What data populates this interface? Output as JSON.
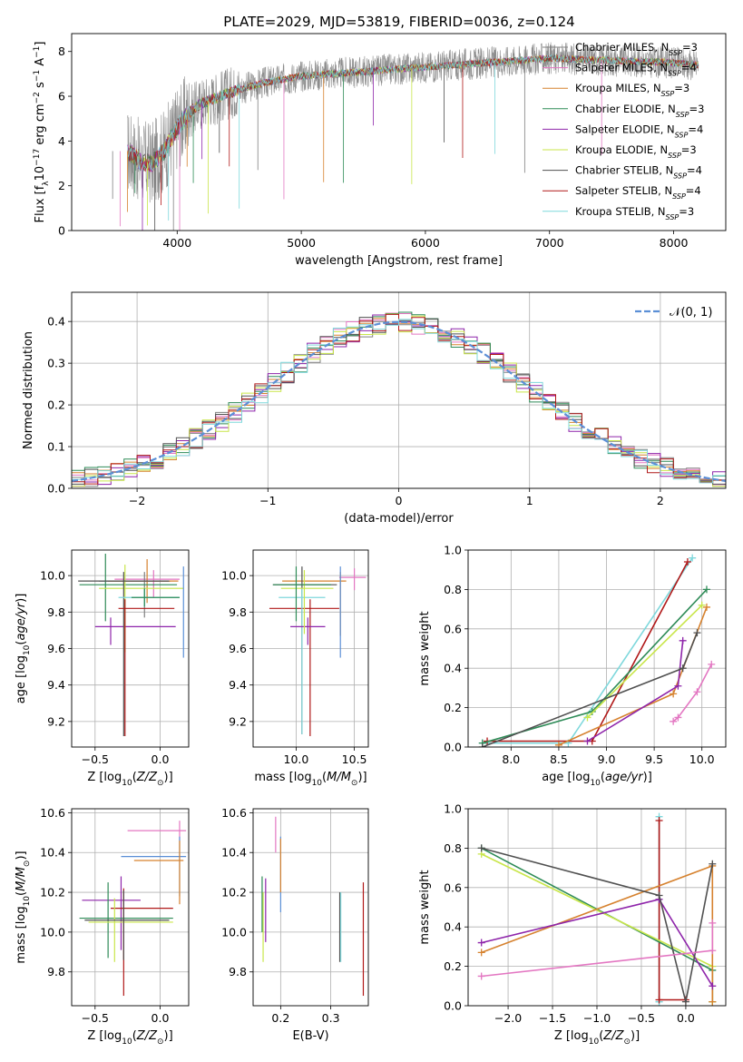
{
  "figure_title": "PLATE=2029, MJD=53819, FIBERID=0036, z=0.124",
  "colors": {
    "chabrier_miles": "#808080",
    "salpeter_miles": "#e377c2",
    "kroupa_miles": "#d6822f",
    "chabrier_elodie": "#2e8b57",
    "salpeter_elodie": "#8e24aa",
    "kroupa_elodie": "#c9e64a",
    "chabrier_stelib": "#505050",
    "salpeter_stelib": "#b01818",
    "kroupa_stelib": "#7fd8dc",
    "normal_curve": "#5b8fd6",
    "grid": "#b0b0b0"
  },
  "chart_data": [
    {
      "id": "spectrum",
      "type": "line",
      "xlabel": "wavelength [Angstrom, rest frame]",
      "ylabel": "Flux [fλ10⁻¹⁷ erg cm⁻² s⁻¹ A⁻¹]",
      "xlim": [
        3150,
        8420
      ],
      "ylim": [
        0,
        8.8
      ],
      "xticks": [
        4000,
        5000,
        6000,
        7000,
        8000
      ],
      "yticks": [
        0,
        2,
        4,
        6,
        8
      ],
      "grid": false,
      "legend_position": "upper right",
      "legend": [
        "Chabrier MILES, N_SSP=3",
        "Salpeter MILES, N_SSP=4",
        "Kroupa MILES, N_SSP=3",
        "Chabrier ELODIE, N_SSP=3",
        "Salpeter ELODIE, N_SSP=4",
        "Kroupa ELODIE, N_SSP=3",
        "Chabrier STELIB, N_SSP=4",
        "Salpeter STELIB, N_SSP=4",
        "Kroupa STELIB, N_SSP=3"
      ],
      "continuum": {
        "x": [
          3600,
          3700,
          3800,
          3900,
          4000,
          4100,
          4200,
          4300,
          4500,
          4700,
          5000,
          5500,
          6000,
          6500,
          7000,
          7500,
          8000,
          8200
        ],
        "y": [
          3.55,
          3.1,
          3.0,
          3.6,
          4.6,
          5.3,
          5.7,
          5.9,
          6.3,
          6.6,
          6.9,
          7.1,
          7.3,
          7.5,
          7.7,
          7.6,
          7.5,
          7.4
        ]
      },
      "noise_spikes_x": [
        3480,
        3540,
        3600,
        3660,
        3720,
        3760,
        3820,
        3870,
        3930,
        3970,
        4020,
        4080,
        4130,
        4200,
        4250,
        4340,
        4420,
        4500,
        4650,
        4860,
        5180,
        5340,
        5580,
        5890,
        6150,
        6300,
        6560,
        6800,
        7420
      ]
    },
    {
      "id": "residuals",
      "type": "line",
      "xlabel": "(data-model)/error",
      "ylabel": "Normed distribution",
      "xlim": [
        -2.5,
        2.5
      ],
      "ylim": [
        0,
        0.47
      ],
      "xticks": [
        -2,
        -1,
        0,
        1,
        2
      ],
      "yticks": [
        0.0,
        0.1,
        0.2,
        0.3,
        0.4
      ],
      "grid": true,
      "legend_position": "upper right",
      "legend": [
        "𝒩(0, 1)"
      ],
      "bin_width": 0.1
    },
    {
      "id": "age-vs-z",
      "type": "scatter",
      "xlabel": "Z [log10(Z/Z⊙)]",
      "ylabel": "age  [log10(age/yr)]",
      "xlim": [
        -0.68,
        0.22
      ],
      "ylim": [
        9.06,
        10.14
      ],
      "xticks": [
        -0.5,
        0.0
      ],
      "yticks": [
        9.2,
        9.4,
        9.6,
        9.8,
        10.0
      ],
      "grid": true,
      "points": [
        {
          "x": -0.05,
          "xerr": [
            0.3,
            0.2
          ],
          "y": 9.98,
          "yerr": [
            0.1,
            0.05
          ],
          "color": "salpeter_miles"
        },
        {
          "x": -0.12,
          "xerr": [
            0.35,
            0.2
          ],
          "y": 9.97,
          "yerr": [
            0.2,
            0.05
          ],
          "color": "chabrier_miles"
        },
        {
          "x": -0.1,
          "xerr": [
            0.3,
            0.24
          ],
          "y": 9.97,
          "yerr": [
            0.12,
            0.12
          ],
          "color": "kroupa_miles"
        },
        {
          "x": -0.42,
          "xerr": [
            0.2,
            0.55
          ],
          "y": 9.95,
          "yerr": [
            0.2,
            0.17
          ],
          "color": "chabrier_elodie"
        },
        {
          "x": -0.38,
          "xerr": [
            0.12,
            0.5
          ],
          "y": 9.72,
          "yerr": [
            0.1,
            0.05
          ],
          "color": "salpeter_elodie"
        },
        {
          "x": -0.27,
          "xerr": [
            0.2,
            0.45
          ],
          "y": 9.93,
          "yerr": [
            0.35,
            0.13
          ],
          "color": "kroupa_elodie"
        },
        {
          "x": -0.28,
          "xerr": [
            0.35,
            0.35
          ],
          "y": 9.97,
          "yerr": [
            0.85,
            0.05
          ],
          "color": "chabrier_stelib"
        },
        {
          "x": -0.27,
          "xerr": [
            0.05,
            0.38
          ],
          "y": 9.82,
          "yerr": [
            0.7,
            0.05
          ],
          "color": "salpeter_stelib"
        },
        {
          "x": -0.12,
          "xerr": [
            0.2,
            0.27
          ],
          "y": 9.88,
          "yerr": [
            0.05,
            0.05
          ],
          "color": "kroupa_stelib"
        },
        {
          "x": -0.12,
          "xerr": [
            0.1,
            0.27
          ],
          "y": 9.88,
          "yerr": [
            0.05,
            0.05
          ],
          "color": "chabrier_elodie"
        },
        {
          "x": 0.18,
          "xerr": [
            0.0,
            0.0
          ],
          "y": 9.95,
          "yerr": [
            0.4,
            0.1
          ],
          "color": "normal_curve"
        }
      ]
    },
    {
      "id": "age-vs-mass",
      "type": "scatter",
      "xlabel": "mass [log10(M/M⊙)]",
      "ylabel": "",
      "xlim": [
        9.63,
        10.62
      ],
      "ylim": [
        9.06,
        10.14
      ],
      "xticks": [
        10.0,
        10.5
      ],
      "yticks": [
        9.2,
        9.4,
        9.6,
        9.8,
        10.0
      ],
      "grid": true,
      "points": [
        {
          "x": 10.5,
          "xerr": [
            0.13,
            0.1
          ],
          "y": 9.99,
          "yerr": [
            0.07,
            0.05
          ],
          "color": "salpeter_miles"
        },
        {
          "x": 10.38,
          "xerr": [
            0.5,
            0.05
          ],
          "y": 9.97,
          "yerr": [
            0.3,
            0.05
          ],
          "color": "kroupa_miles"
        },
        {
          "x": 10.12,
          "xerr": [
            0.35,
            0.25
          ],
          "y": 9.82,
          "yerr": [
            0.7,
            0.05
          ],
          "color": "salpeter_stelib"
        },
        {
          "x": 10.05,
          "xerr": [
            0.25,
            0.3
          ],
          "y": 9.95,
          "yerr": [
            0.82,
            0.1
          ],
          "color": "chabrier_stelib"
        },
        {
          "x": 10.05,
          "xerr": [
            0.2,
            0.2
          ],
          "y": 9.88,
          "yerr": [
            0.75,
            0.05
          ],
          "color": "kroupa_stelib"
        },
        {
          "x": 10.1,
          "xerr": [
            0.15,
            0.15
          ],
          "y": 9.72,
          "yerr": [
            0.1,
            0.05
          ],
          "color": "salpeter_elodie"
        },
        {
          "x": 10.07,
          "xerr": [
            0.2,
            0.25
          ],
          "y": 9.93,
          "yerr": [
            0.25,
            0.1
          ],
          "color": "kroupa_elodie"
        },
        {
          "x": 10.0,
          "xerr": [
            0.2,
            0.3
          ],
          "y": 9.95,
          "yerr": [
            0.2,
            0.1
          ],
          "color": "chabrier_elodie"
        },
        {
          "x": 10.38,
          "xerr": [
            0.0,
            0.0
          ],
          "y": 9.95,
          "yerr": [
            0.4,
            0.1
          ],
          "color": "normal_curve"
        }
      ]
    },
    {
      "id": "mass-weight-vs-age",
      "type": "line",
      "xlabel": "age  [log10(age/yr)]",
      "ylabel": "mass weight",
      "xlim": [
        7.55,
        10.25
      ],
      "ylim": [
        0,
        1
      ],
      "xticks": [
        8.0,
        8.5,
        9.0,
        9.5,
        10.0
      ],
      "yticks": [
        0.0,
        0.2,
        0.4,
        0.6,
        0.8,
        1.0
      ],
      "grid": true,
      "series": [
        {
          "color": "kroupa_stelib",
          "x": [
            7.7,
            8.6,
            9.9
          ],
          "y": [
            0.02,
            0.02,
            0.96
          ]
        },
        {
          "color": "salpeter_stelib",
          "x": [
            7.75,
            8.85,
            9.85
          ],
          "y": [
            0.03,
            0.03,
            0.94
          ]
        },
        {
          "color": "chabrier_elodie",
          "x": [
            7.7,
            8.85,
            10.05
          ],
          "y": [
            0.02,
            0.18,
            0.8
          ]
        },
        {
          "color": "kroupa_elodie",
          "x": [
            8.8,
            10.0
          ],
          "y": [
            0.15,
            0.72
          ]
        },
        {
          "color": "kroupa_miles",
          "x": [
            8.5,
            9.7,
            10.05
          ],
          "y": [
            0.01,
            0.27,
            0.71
          ]
        },
        {
          "color": "salpeter_elodie",
          "x": [
            8.8,
            9.75,
            9.8
          ],
          "y": [
            0.03,
            0.31,
            0.54
          ]
        },
        {
          "color": "chabrier_stelib",
          "x": [
            7.7,
            9.8,
            9.95
          ],
          "y": [
            0.0,
            0.4,
            0.58
          ]
        },
        {
          "color": "salpeter_miles",
          "x": [
            9.7,
            9.75,
            9.95,
            10.1
          ],
          "y": [
            0.13,
            0.15,
            0.28,
            0.42
          ]
        }
      ]
    },
    {
      "id": "mass-vs-z",
      "type": "scatter",
      "xlabel": "Z [log10(Z/Z⊙)]",
      "ylabel": "mass [log10(M/M⊙)]",
      "xlim": [
        -0.68,
        0.22
      ],
      "ylim": [
        9.63,
        10.62
      ],
      "xticks": [
        -0.5,
        0.0
      ],
      "yticks": [
        9.8,
        10.0,
        10.2,
        10.4,
        10.6
      ],
      "grid": true,
      "points": [
        {
          "x": 0.15,
          "xerr": [
            0.4,
            0.05
          ],
          "y": 10.51,
          "yerr": [
            0.05,
            0.05
          ],
          "color": "salpeter_miles"
        },
        {
          "x": 0.15,
          "xerr": [
            0.45,
            0.05
          ],
          "y": 10.38,
          "yerr": [
            0.2,
            0.1
          ],
          "color": "normal_curve"
        },
        {
          "x": 0.15,
          "xerr": [
            0.35,
            0.03
          ],
          "y": 10.36,
          "yerr": [
            0.22,
            0.1
          ],
          "color": "kroupa_miles"
        },
        {
          "x": -0.3,
          "xerr": [
            0.3,
            0.15
          ],
          "y": 10.16,
          "yerr": [
            0.25,
            0.12
          ],
          "color": "salpeter_elodie"
        },
        {
          "x": -0.28,
          "xerr": [
            0.1,
            0.38
          ],
          "y": 10.12,
          "yerr": [
            0.44,
            0.1
          ],
          "color": "salpeter_stelib"
        },
        {
          "x": -0.4,
          "xerr": [
            0.22,
            0.5
          ],
          "y": 10.07,
          "yerr": [
            0.2,
            0.18
          ],
          "color": "chabrier_elodie"
        },
        {
          "x": -0.35,
          "xerr": [
            0.2,
            0.45
          ],
          "y": 10.05,
          "yerr": [
            0.2,
            0.12
          ],
          "color": "kroupa_elodie"
        },
        {
          "x": -0.28,
          "xerr": [
            0.3,
            0.35
          ],
          "y": 10.06,
          "yerr": [
            0.2,
            0.15
          ],
          "color": "chabrier_stelib"
        }
      ]
    },
    {
      "id": "mass-vs-ebv",
      "type": "scatter",
      "xlabel": "E(B-V)",
      "ylabel": "",
      "xlim": [
        0.145,
        0.375
      ],
      "ylim": [
        9.63,
        10.62
      ],
      "xticks": [
        0.2,
        0.3
      ],
      "yticks": [
        9.8,
        10.0,
        10.2,
        10.4,
        10.6
      ],
      "grid": true,
      "points": [
        {
          "x": 0.163,
          "y": 10.15,
          "yerr": [
            0.15,
            0.13
          ],
          "color": "chabrier_elodie"
        },
        {
          "x": 0.165,
          "y": 10.05,
          "yerr": [
            0.2,
            0.15
          ],
          "color": "kroupa_elodie"
        },
        {
          "x": 0.17,
          "y": 10.15,
          "yerr": [
            0.2,
            0.12
          ],
          "color": "salpeter_elodie"
        },
        {
          "x": 0.19,
          "y": 10.5,
          "yerr": [
            0.1,
            0.08
          ],
          "color": "salpeter_miles"
        },
        {
          "x": 0.2,
          "y": 10.3,
          "yerr": [
            0.2,
            0.18
          ],
          "color": "normal_curve"
        },
        {
          "x": 0.2,
          "y": 10.35,
          "yerr": [
            0.15,
            0.12
          ],
          "color": "kroupa_miles"
        },
        {
          "x": 0.318,
          "y": 10.05,
          "yerr": [
            0.2,
            0.15
          ],
          "color": "chabrier_stelib"
        },
        {
          "x": 0.32,
          "y": 10.05,
          "yerr": [
            0.2,
            0.15
          ],
          "color": "kroupa_stelib"
        },
        {
          "x": 0.365,
          "y": 10.0,
          "yerr": [
            0.32,
            0.25
          ],
          "color": "salpeter_stelib"
        }
      ]
    },
    {
      "id": "mass-weight-vs-z",
      "type": "line",
      "xlabel": "Z [log10(Z/Z⊙)]",
      "ylabel": "mass weight",
      "xlim": [
        -2.45,
        0.45
      ],
      "ylim": [
        0,
        1
      ],
      "xticks": [
        -2.0,
        -1.5,
        -1.0,
        -0.5,
        0.0
      ],
      "yticks": [
        0.0,
        0.2,
        0.4,
        0.6,
        0.8,
        1.0
      ],
      "grid": true,
      "series": [
        {
          "color": "kroupa_stelib",
          "x": [
            -0.3,
            -0.3,
            -0.3
          ],
          "y": [
            0.02,
            0.96,
            0.02
          ]
        },
        {
          "color": "salpeter_stelib",
          "x": [
            -0.3,
            -0.3,
            0.0
          ],
          "y": [
            0.94,
            0.03,
            0.03
          ]
        },
        {
          "color": "chabrier_elodie",
          "x": [
            -2.3,
            0.3,
            0.3
          ],
          "y": [
            0.8,
            0.18,
            0.02
          ]
        },
        {
          "color": "kroupa_elodie",
          "x": [
            -2.3,
            0.3,
            0.3
          ],
          "y": [
            0.77,
            0.2,
            0.02
          ]
        },
        {
          "color": "kroupa_miles",
          "x": [
            -2.3,
            0.3,
            0.3
          ],
          "y": [
            0.27,
            0.71,
            0.02
          ]
        },
        {
          "color": "salpeter_elodie",
          "x": [
            -2.3,
            -0.3,
            0.3
          ],
          "y": [
            0.32,
            0.54,
            0.1
          ]
        },
        {
          "color": "chabrier_stelib",
          "x": [
            -2.3,
            -0.3,
            0.0,
            0.3
          ],
          "y": [
            0.8,
            0.56,
            0.02,
            0.72
          ]
        },
        {
          "color": "salpeter_miles",
          "x": [
            -2.3,
            0.3,
            0.3
          ],
          "y": [
            0.15,
            0.28,
            0.42
          ]
        }
      ]
    }
  ]
}
